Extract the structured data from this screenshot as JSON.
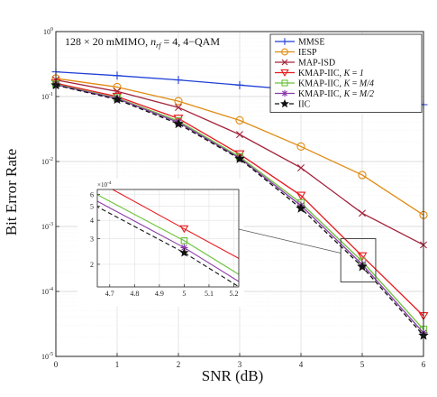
{
  "chart_data": {
    "type": "line",
    "title": "",
    "annotation": "128 × 20 mMIMO, n_rf = 4, 4−QAM",
    "xlabel": "SNR (dB)",
    "ylabel": "Bit Error Rate",
    "xlim": [
      0,
      6
    ],
    "ylim": [
      1e-05,
      1
    ],
    "yscale": "log",
    "grid": true,
    "legend_position": "top-right",
    "x": [
      0,
      1,
      2,
      3,
      4,
      5,
      6
    ],
    "x_ticks": [
      "0",
      "1",
      "2",
      "3",
      "4",
      "5",
      "6"
    ],
    "y_ticks": [
      {
        "base": "10",
        "exp": "0",
        "value": 1
      },
      {
        "base": "10",
        "exp": "-1",
        "value": 0.1
      },
      {
        "base": "10",
        "exp": "-2",
        "value": 0.01
      },
      {
        "base": "10",
        "exp": "-3",
        "value": 0.001
      },
      {
        "base": "10",
        "exp": "-4",
        "value": 0.0001
      },
      {
        "base": "10",
        "exp": "-5",
        "value": 1e-05
      }
    ],
    "series": [
      {
        "name": "MMSE",
        "color": "#1f3fd6",
        "marker": "plus",
        "dash": "",
        "values": [
          0.24,
          0.21,
          0.18,
          0.15,
          0.125,
          0.1,
          0.075
        ]
      },
      {
        "name": "IESP",
        "color": "#e08a10",
        "marker": "circle",
        "dash": "",
        "values": [
          0.19,
          0.14,
          0.085,
          0.043,
          0.017,
          0.0062,
          0.0015
        ]
      },
      {
        "name": "MAP-ISD",
        "color": "#a3233a",
        "marker": "x",
        "dash": "",
        "values": [
          0.18,
          0.12,
          0.068,
          0.026,
          0.008,
          0.0016,
          0.00052
        ]
      },
      {
        "name": "KMAP-IIC, K = 1",
        "color": "#e8191e",
        "marker": "triangle-down",
        "dash": "",
        "values": [
          0.16,
          0.1,
          0.046,
          0.013,
          0.003,
          0.00035,
          4.2e-05
        ]
      },
      {
        "name": "KMAP-IIC, K = M/4",
        "color": "#6cc23a",
        "marker": "square",
        "dash": "",
        "values": [
          0.155,
          0.095,
          0.042,
          0.0118,
          0.0023,
          0.00029,
          2.6e-05
        ]
      },
      {
        "name": "KMAP-IIC, K = M/2",
        "color": "#8a3aa8",
        "marker": "asterisk",
        "dash": "",
        "values": [
          0.152,
          0.093,
          0.04,
          0.0113,
          0.0021,
          0.00026,
          2.3e-05
        ]
      },
      {
        "name": "IIC",
        "color": "#111111",
        "marker": "star",
        "dash": "5 3",
        "values": [
          0.15,
          0.09,
          0.038,
          0.011,
          0.0019,
          0.00024,
          2.1e-05
        ]
      }
    ],
    "legend_labels": [
      {
        "prefix": "MMSE",
        "k": ""
      },
      {
        "prefix": "IESP",
        "k": ""
      },
      {
        "prefix": "MAP-ISD",
        "k": ""
      },
      {
        "prefix": "KMAP-IIC, ",
        "k": "1"
      },
      {
        "prefix": "KMAP-IIC, ",
        "k": "M/4"
      },
      {
        "prefix": "KMAP-IIC, ",
        "k": "M/2"
      },
      {
        "prefix": "IIC",
        "k": ""
      }
    ],
    "inset": {
      "xlim": [
        4.65,
        5.22
      ],
      "ylim": [
        0.00014,
        0.00065
      ],
      "yscale": "log",
      "y_multiplier": "×10^{-4}",
      "x_ticks": [
        "4.7",
        "4.8",
        "4.9",
        "5",
        "5.1",
        "5.2"
      ],
      "x_tick_values": [
        4.7,
        4.8,
        4.9,
        5.0,
        5.1,
        5.2
      ],
      "y_ticks": [
        "2",
        "3",
        "4",
        "5",
        "6"
      ],
      "y_tick_values": [
        0.0002,
        0.0003,
        0.0004,
        0.0005,
        0.0006
      ]
    }
  }
}
